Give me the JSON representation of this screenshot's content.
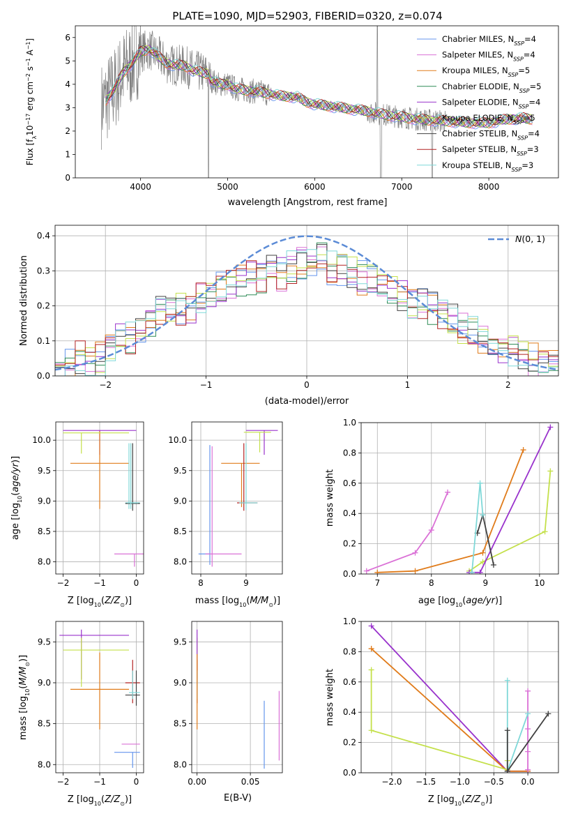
{
  "figure": {
    "title": "PLATE=1090, MJD=52903, FIBERID=0320, z=0.074"
  },
  "colors": {
    "spectrum": "#808080",
    "gauss": "#5b8bd6",
    "grid": "#b0b0b0"
  },
  "chart_data": [
    {
      "id": "spectrum",
      "type": "line",
      "title": "PLATE=1090, MJD=52903, FIBERID=0320, z=0.074",
      "xlabel": "wavelength [Angstrom, rest frame]",
      "ylabel": "Flux [f$_\\lambda$10$^{-17}$ erg cm$^{-2}$ s$^{-1}$ A$^{-1}$]",
      "ylabel_parts": [
        "Flux [f",
        "λ",
        "10",
        "−17",
        " erg cm",
        "−2",
        " s",
        "−1",
        " A",
        "−1",
        "]"
      ],
      "xlim": [
        3250,
        8800
      ],
      "ylim": [
        0,
        6.5
      ],
      "xticks": [
        4000,
        5000,
        6000,
        7000,
        8000
      ],
      "yticks": [
        0,
        1,
        2,
        3,
        4,
        5,
        6
      ],
      "grid": false,
      "legend_position": "top-right",
      "data_continuum": {
        "x": [
          3550,
          3600,
          3700,
          3800,
          3900,
          4000,
          4100,
          4200,
          4300,
          4400,
          4500,
          4600,
          4700,
          4780,
          4800,
          4900,
          5000,
          5100,
          5200,
          5400,
          5600,
          5800,
          5900,
          6000,
          6200,
          6400,
          6600,
          6800,
          7000,
          7200,
          7400,
          7600,
          7800,
          8000,
          8200,
          8400,
          8500
        ],
        "y": [
          3.1,
          3.3,
          3.8,
          4.5,
          4.9,
          5.4,
          5.5,
          5.2,
          4.9,
          4.8,
          4.8,
          4.6,
          4.5,
          4.45,
          4.2,
          4.0,
          4.0,
          3.8,
          3.75,
          3.65,
          3.5,
          3.45,
          3.25,
          3.15,
          3.05,
          2.95,
          2.85,
          2.7,
          2.6,
          2.5,
          2.45,
          2.4,
          2.35,
          2.35,
          2.5,
          2.55,
          2.5
        ]
      },
      "series": [
        {
          "name": "Chabrier MILES, N$_{SSP}$=4",
          "label": "Chabrier MILES, N",
          "n": "4",
          "color": "#6495ed"
        },
        {
          "name": "Salpeter MILES, N$_{SSP}$=4",
          "label": "Salpeter MILES, N",
          "n": "4",
          "color": "#da70d6"
        },
        {
          "name": "Kroupa MILES, N$_{SSP}$=5",
          "label": "Kroupa MILES, N",
          "n": "5",
          "color": "#e07b1a"
        },
        {
          "name": "Chabrier ELODIE, N$_{SSP}$=5",
          "label": "Chabrier ELODIE, N",
          "n": "5",
          "color": "#2e8b57"
        },
        {
          "name": "Salpeter ELODIE, N$_{SSP}$=4",
          "label": "Salpeter ELODIE, N",
          "n": "4",
          "color": "#9932cc"
        },
        {
          "name": "Kroupa ELODIE, N$_{SSP}$=5",
          "label": "Kroupa ELODIE, N",
          "n": "5",
          "color": "#c4e04a"
        },
        {
          "name": "Chabrier STELIB, N$_{SSP}$=4",
          "label": "Chabrier STELIB, N",
          "n": "4",
          "color": "#404040"
        },
        {
          "name": "Salpeter STELIB, N$_{SSP}$=3",
          "label": "Salpeter STELIB, N",
          "n": "3",
          "color": "#b22222"
        },
        {
          "name": "Kroupa STELIB, N$_{SSP}$=3",
          "label": "Kroupa STELIB, N",
          "n": "3",
          "color": "#7fd8d8"
        }
      ],
      "legend_sub": "SSP"
    },
    {
      "id": "residuals",
      "type": "line",
      "xlabel": "(data-model)/error",
      "ylabel": "Normed distribution",
      "xlim": [
        -2.5,
        2.5
      ],
      "ylim": [
        0,
        0.43
      ],
      "xticks": [
        -2,
        -1,
        0,
        1,
        2
      ],
      "xtick_labels": [
        "−2",
        "−1",
        "0",
        "1",
        "2"
      ],
      "yticks": [
        0,
        0.1,
        0.2,
        0.3,
        0.4
      ],
      "ytick_labels": [
        "0.0",
        "0.1",
        "0.2",
        "0.3",
        "0.4"
      ],
      "grid": true,
      "legend_position": "top-right",
      "gauss_label": "N(0, 1)",
      "bin_centers": [
        -2.45,
        -2.35,
        -2.25,
        -2.15,
        -2.05,
        -1.95,
        -1.85,
        -1.75,
        -1.65,
        -1.55,
        -1.45,
        -1.35,
        -1.25,
        -1.15,
        -1.05,
        -0.95,
        -0.85,
        -0.75,
        -0.65,
        -0.55,
        -0.45,
        -0.35,
        -0.25,
        -0.15,
        -0.05,
        0.05,
        0.15,
        0.25,
        0.35,
        0.45,
        0.55,
        0.65,
        0.75,
        0.85,
        0.95,
        1.05,
        1.15,
        1.25,
        1.35,
        1.45,
        1.55,
        1.65,
        1.75,
        1.85,
        1.95,
        2.05,
        2.15,
        2.25,
        2.35,
        2.45
      ],
      "hist_base": [
        0.045,
        0.05,
        0.075,
        0.06,
        0.07,
        0.11,
        0.12,
        0.13,
        0.15,
        0.18,
        0.21,
        0.2,
        0.21,
        0.22,
        0.24,
        0.25,
        0.27,
        0.28,
        0.29,
        0.3,
        0.3,
        0.32,
        0.31,
        0.33,
        0.34,
        0.34,
        0.35,
        0.33,
        0.32,
        0.31,
        0.3,
        0.29,
        0.28,
        0.27,
        0.25,
        0.23,
        0.22,
        0.21,
        0.2,
        0.18,
        0.16,
        0.14,
        0.13,
        0.12,
        0.1,
        0.09,
        0.08,
        0.065,
        0.06,
        0.055
      ]
    },
    {
      "id": "age-vs-Z",
      "type": "scatter",
      "xlabel": "Z [log10(Z/Z⊙)]",
      "ylabel": "age [log10(age/yr)]",
      "xlim": [
        -2.2,
        0.2
      ],
      "ylim": [
        7.8,
        10.3
      ],
      "xticks": [
        -2,
        -1,
        0
      ],
      "xtick_labels": [
        "−2",
        "−1",
        "0"
      ],
      "yticks": [
        8.0,
        8.5,
        9.0,
        9.5,
        10.0
      ],
      "ytick_labels": [
        "8.0",
        "8.5",
        "9.0",
        "9.5",
        "10.0"
      ],
      "grid": true,
      "points": [
        {
          "s": 4,
          "x": -1.0,
          "y": 10.16,
          "x0": -2.0,
          "x1": 0.0,
          "y0": 9.76,
          "y1": 10.16
        },
        {
          "s": 2,
          "x": -1.0,
          "y": 9.62,
          "x0": -1.8,
          "x1": -0.2,
          "y0": 8.87,
          "y1": 10.15
        },
        {
          "s": 5,
          "x": -1.5,
          "y": 10.12,
          "x0": -2.0,
          "x1": -0.2,
          "y0": 9.78,
          "y1": 10.12
        },
        {
          "s": 8,
          "x": -0.2,
          "y": 8.97,
          "x0": -0.3,
          "x1": 0.1,
          "y0": 8.87,
          "y1": 9.95
        },
        {
          "s": 6,
          "x": -0.1,
          "y": 8.96,
          "x0": -0.3,
          "x1": 0.1,
          "y0": 8.84,
          "y1": 9.95
        },
        {
          "s": 8,
          "x": -0.15,
          "y": 8.97,
          "x0": -0.25,
          "x1": 0.05,
          "y0": 8.87,
          "y1": 9.95
        },
        {
          "s": 1,
          "x": -0.05,
          "y": 8.13,
          "x0": -0.6,
          "x1": 0.2,
          "y0": 7.92,
          "y1": 8.13
        }
      ]
    },
    {
      "id": "age-vs-mass",
      "type": "scatter",
      "xlabel": "mass [log10(M/M⊙)]",
      "xlim": [
        7.8,
        9.8
      ],
      "ylim": [
        7.8,
        10.3
      ],
      "xticks": [
        8,
        9
      ],
      "xtick_labels": [
        "8",
        "9"
      ],
      "yticks": [
        8.0,
        8.5,
        9.0,
        9.5,
        10.0
      ],
      "ytick_labels": [
        "8.0",
        "8.5",
        "9.0",
        "9.5",
        "10.0"
      ],
      "grid": true,
      "points": [
        {
          "s": 4,
          "x": 9.4,
          "y": 10.16,
          "x0": 9.0,
          "x1": 9.7,
          "y0": 9.76,
          "y1": 10.16
        },
        {
          "s": 5,
          "x": 9.3,
          "y": 10.13,
          "x0": 8.95,
          "x1": 9.55,
          "y0": 9.8,
          "y1": 10.13
        },
        {
          "s": 2,
          "x": 8.9,
          "y": 9.62,
          "x0": 8.45,
          "x1": 9.3,
          "y0": 8.9,
          "y1": 9.62
        },
        {
          "s": 7,
          "x": 8.95,
          "y": 8.97,
          "x0": 8.8,
          "x1": 9.25,
          "y0": 8.84,
          "y1": 9.95
        },
        {
          "s": 8,
          "x": 9.0,
          "y": 8.97,
          "x0": 8.85,
          "x1": 9.25,
          "y0": 8.85,
          "y1": 9.95
        },
        {
          "s": 0,
          "x": 8.2,
          "y": 8.13,
          "x0": 7.95,
          "x1": 8.2,
          "y0": 7.95,
          "y1": 9.92
        },
        {
          "s": 1,
          "x": 8.25,
          "y": 8.13,
          "x0": 8.1,
          "x1": 8.9,
          "y0": 7.92,
          "y1": 9.9
        }
      ]
    },
    {
      "id": "weight-vs-age",
      "type": "line",
      "xlabel": "age [log10(age/yr)]",
      "ylabel": "mass weight",
      "xlim": [
        6.7,
        10.35
      ],
      "ylim": [
        0,
        1.0
      ],
      "xticks": [
        7,
        8,
        9,
        10
      ],
      "xtick_labels": [
        "7",
        "8",
        "9",
        "10"
      ],
      "yticks": [
        0,
        0.2,
        0.4,
        0.6,
        0.8,
        1.0
      ],
      "ytick_labels": [
        "0.0",
        "0.2",
        "0.4",
        "0.6",
        "0.8",
        "1.0"
      ],
      "grid": true,
      "series": [
        {
          "s": 1,
          "x": [
            6.8,
            7.7,
            8.0,
            8.3
          ],
          "y": [
            0.02,
            0.14,
            0.29,
            0.54
          ]
        },
        {
          "s": 2,
          "x": [
            7.0,
            7.7,
            8.95,
            9.7
          ],
          "y": [
            0.01,
            0.02,
            0.14,
            0.82
          ]
        },
        {
          "s": 5,
          "x": [
            8.7,
            8.95,
            10.1,
            10.2
          ],
          "y": [
            0.02,
            0.08,
            0.28,
            0.68
          ]
        },
        {
          "s": 4,
          "x": [
            8.7,
            8.9,
            10.2
          ],
          "y": [
            0.01,
            0.01,
            0.97
          ]
        },
        {
          "s": 6,
          "x": [
            8.85,
            8.95,
            9.15
          ],
          "y": [
            0.27,
            0.39,
            0.06
          ]
        },
        {
          "s": 8,
          "x": [
            8.75,
            8.9,
            8.95
          ],
          "y": [
            0.01,
            0.6,
            0.39
          ]
        }
      ]
    },
    {
      "id": "mass-vs-Z",
      "type": "scatter",
      "xlabel": "Z [log10(Z/Z⊙)]",
      "ylabel": "mass [log10(M/M⊙)]",
      "xlim": [
        -2.2,
        0.2
      ],
      "ylim": [
        7.9,
        9.75
      ],
      "xticks": [
        -2,
        -1,
        0
      ],
      "xtick_labels": [
        "−2",
        "−1",
        "0"
      ],
      "yticks": [
        8.0,
        8.5,
        9.0,
        9.5
      ],
      "ytick_labels": [
        "8.0",
        "8.5",
        "9.0",
        "9.5"
      ],
      "grid": true,
      "points": [
        {
          "s": 4,
          "x": -1.5,
          "y": 9.58,
          "x0": -2.1,
          "x1": -0.2,
          "y0": 9.04,
          "y1": 9.65
        },
        {
          "s": 5,
          "x": -1.5,
          "y": 9.4,
          "x0": -2.0,
          "x1": -0.2,
          "y0": 8.95,
          "y1": 9.55
        },
        {
          "s": 2,
          "x": -1.0,
          "y": 8.92,
          "x0": -1.8,
          "x1": -0.2,
          "y0": 8.43,
          "y1": 9.37
        },
        {
          "s": 7,
          "x": -0.1,
          "y": 9.0,
          "x0": -0.3,
          "x1": 0.1,
          "y0": 8.75,
          "y1": 9.28
        },
        {
          "s": 6,
          "x": 0.0,
          "y": 8.85,
          "x0": -0.3,
          "x1": 0.1,
          "y0": 8.72,
          "y1": 9.15
        },
        {
          "s": 8,
          "x": -0.1,
          "y": 8.88,
          "x0": -0.2,
          "x1": 0.1,
          "y0": 8.8,
          "y1": 9.15
        },
        {
          "s": 1,
          "x": 0.0,
          "y": 8.25,
          "x0": -0.4,
          "x1": 0.1,
          "y0": 8.25,
          "y1": 8.25
        },
        {
          "s": 0,
          "x": -0.1,
          "y": 8.15,
          "x0": -0.6,
          "x1": 0.1,
          "y0": 7.96,
          "y1": 8.15
        }
      ]
    },
    {
      "id": "mass-vs-ebv",
      "type": "scatter",
      "xlabel": "E(B-V)",
      "xlim": [
        -0.005,
        0.08
      ],
      "ylim": [
        7.9,
        9.75
      ],
      "xticks": [
        0,
        0.05
      ],
      "xtick_labels": [
        "0.00",
        "0.05"
      ],
      "yticks": [
        8.0,
        8.5,
        9.0,
        9.5
      ],
      "ytick_labels": [
        "8.0",
        "8.5",
        "9.0",
        "9.5"
      ],
      "grid": true,
      "points": [
        {
          "s": 5,
          "x": 0.0,
          "y": 9.4,
          "x0": 0.0,
          "x1": 0.0,
          "y0": 9.0,
          "y1": 9.55
        },
        {
          "s": 4,
          "x": 0.0,
          "y": 9.3,
          "x0": 0.0,
          "x1": 0.0,
          "y0": 9.05,
          "y1": 9.65
        },
        {
          "s": 7,
          "x": 0.0,
          "y": 9.0,
          "x0": 0.0,
          "x1": 0.0,
          "y0": 8.75,
          "y1": 9.28
        },
        {
          "s": 8,
          "x": 0.0,
          "y": 8.9,
          "x0": 0.0,
          "x1": 0.0,
          "y0": 8.8,
          "y1": 9.15
        },
        {
          "s": 2,
          "x": 0.0,
          "y": 8.9,
          "x0": 0.0,
          "x1": 0.0,
          "y0": 8.43,
          "y1": 9.35
        },
        {
          "s": 0,
          "x": 0.063,
          "y": 8.35,
          "x0": 0.063,
          "x1": 0.063,
          "y0": 7.95,
          "y1": 8.78
        },
        {
          "s": 1,
          "x": 0.077,
          "y": 8.5,
          "x0": 0.077,
          "x1": 0.077,
          "y0": 8.05,
          "y1": 8.9
        }
      ]
    },
    {
      "id": "weight-vs-Z",
      "type": "line",
      "xlabel": "Z [log10(Z/Z⊙)]",
      "ylabel": "mass weight",
      "xlim": [
        -2.45,
        0.45
      ],
      "ylim": [
        0,
        1.0
      ],
      "xticks": [
        -2.0,
        -1.5,
        -1.0,
        -0.5,
        0.0
      ],
      "xtick_labels": [
        "−2.0",
        "−1.5",
        "−1.0",
        "−0.5",
        "0.0"
      ],
      "yticks": [
        0,
        0.2,
        0.4,
        0.6,
        0.8,
        1.0
      ],
      "ytick_labels": [
        "0.0",
        "0.2",
        "0.4",
        "0.6",
        "0.8",
        "1.0"
      ],
      "grid": true,
      "series": [
        {
          "s": 4,
          "x": [
            -2.3,
            -0.3,
            0.0
          ],
          "y": [
            0.97,
            0.01,
            0.01
          ]
        },
        {
          "s": 2,
          "x": [
            -2.3,
            -0.3,
            0.0
          ],
          "y": [
            0.82,
            0.01,
            0.01
          ]
        },
        {
          "s": 5,
          "x": [
            -2.3,
            -2.3,
            -0.3,
            -0.3
          ],
          "y": [
            0.68,
            0.28,
            0.02,
            0.08
          ]
        },
        {
          "s": 1,
          "x": [
            0.0,
            0.0,
            0.0,
            0.0
          ],
          "y": [
            0.54,
            0.29,
            0.14,
            0.02
          ]
        },
        {
          "s": 8,
          "x": [
            -0.3,
            -0.3,
            0.0
          ],
          "y": [
            0.61,
            0.01,
            0.39
          ]
        },
        {
          "s": 6,
          "x": [
            -0.3,
            -0.3,
            0.3
          ],
          "y": [
            0.28,
            0.01,
            0.39
          ]
        }
      ]
    }
  ]
}
